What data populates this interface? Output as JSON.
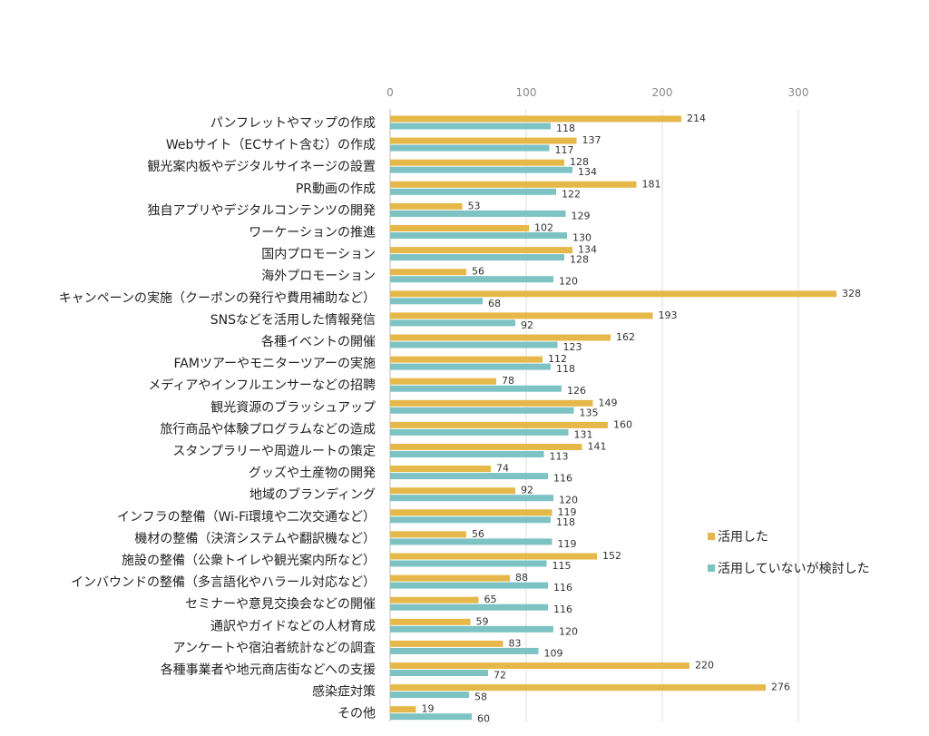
{
  "chart_data": {
    "type": "bar",
    "orientation": "horizontal",
    "title": "",
    "xlabel": "",
    "ylabel": "",
    "xlim": [
      0,
      300
    ],
    "x_ticks": [
      0,
      100,
      200,
      300
    ],
    "x_tick_labels": [
      "0",
      "100",
      "200",
      "300"
    ],
    "grid": true,
    "legend_position": "right",
    "categories": [
      "パンフレットやマップの作成",
      "Webサイト（ECサイト含む）の作成",
      "観光案内板やデジタルサイネージの設置",
      "PR動画の作成",
      "独自アプリやデジタルコンテンツの開発",
      "ワーケーションの推進",
      "国内プロモーション",
      "海外プロモーション",
      "キャンペーンの実施（クーポンの発行や費用補助など）",
      "SNSなどを活用した情報発信",
      "各種イベントの開催",
      "FAMツアーやモニターツアーの実施",
      "メディアやインフルエンサーなどの招聘",
      "観光資源のブラッシュアップ",
      "旅行商品や体験プログラムなどの造成",
      "スタンプラリーや周遊ルートの策定",
      "グッズや土産物の開発",
      "地域のブランディング",
      "インフラの整備（Wi-Fi環境や二次交通など）",
      "機材の整備（決済システムや翻訳機など）",
      "施設の整備（公衆トイレや観光案内所など）",
      "インバウンドの整備（多言語化やハラール対応など）",
      "セミナーや意見交換会などの開催",
      "通訳やガイドなどの人材育成",
      "アンケートや宿泊者統計などの調査",
      "各種事業者や地元商店街などへの支援",
      "感染症対策",
      "その他"
    ],
    "series": [
      {
        "name": "活用した",
        "color": "#E6B84A",
        "values": [
          214,
          137,
          128,
          181,
          53,
          102,
          134,
          56,
          328,
          193,
          162,
          112,
          78,
          149,
          160,
          141,
          74,
          92,
          119,
          56,
          152,
          88,
          65,
          59,
          83,
          220,
          276,
          19
        ]
      },
      {
        "name": "活用していないが検討した",
        "color": "#7DC3C3",
        "values": [
          118,
          117,
          134,
          122,
          129,
          130,
          128,
          120,
          68,
          92,
          123,
          118,
          126,
          135,
          131,
          113,
          116,
          120,
          118,
          119,
          115,
          116,
          116,
          120,
          109,
          72,
          58,
          60
        ]
      }
    ]
  },
  "legend": {
    "items": [
      {
        "label": "活用した",
        "color": "#E6B84A"
      },
      {
        "label": "活用していないが検討した",
        "color": "#7DC3C3"
      }
    ]
  }
}
